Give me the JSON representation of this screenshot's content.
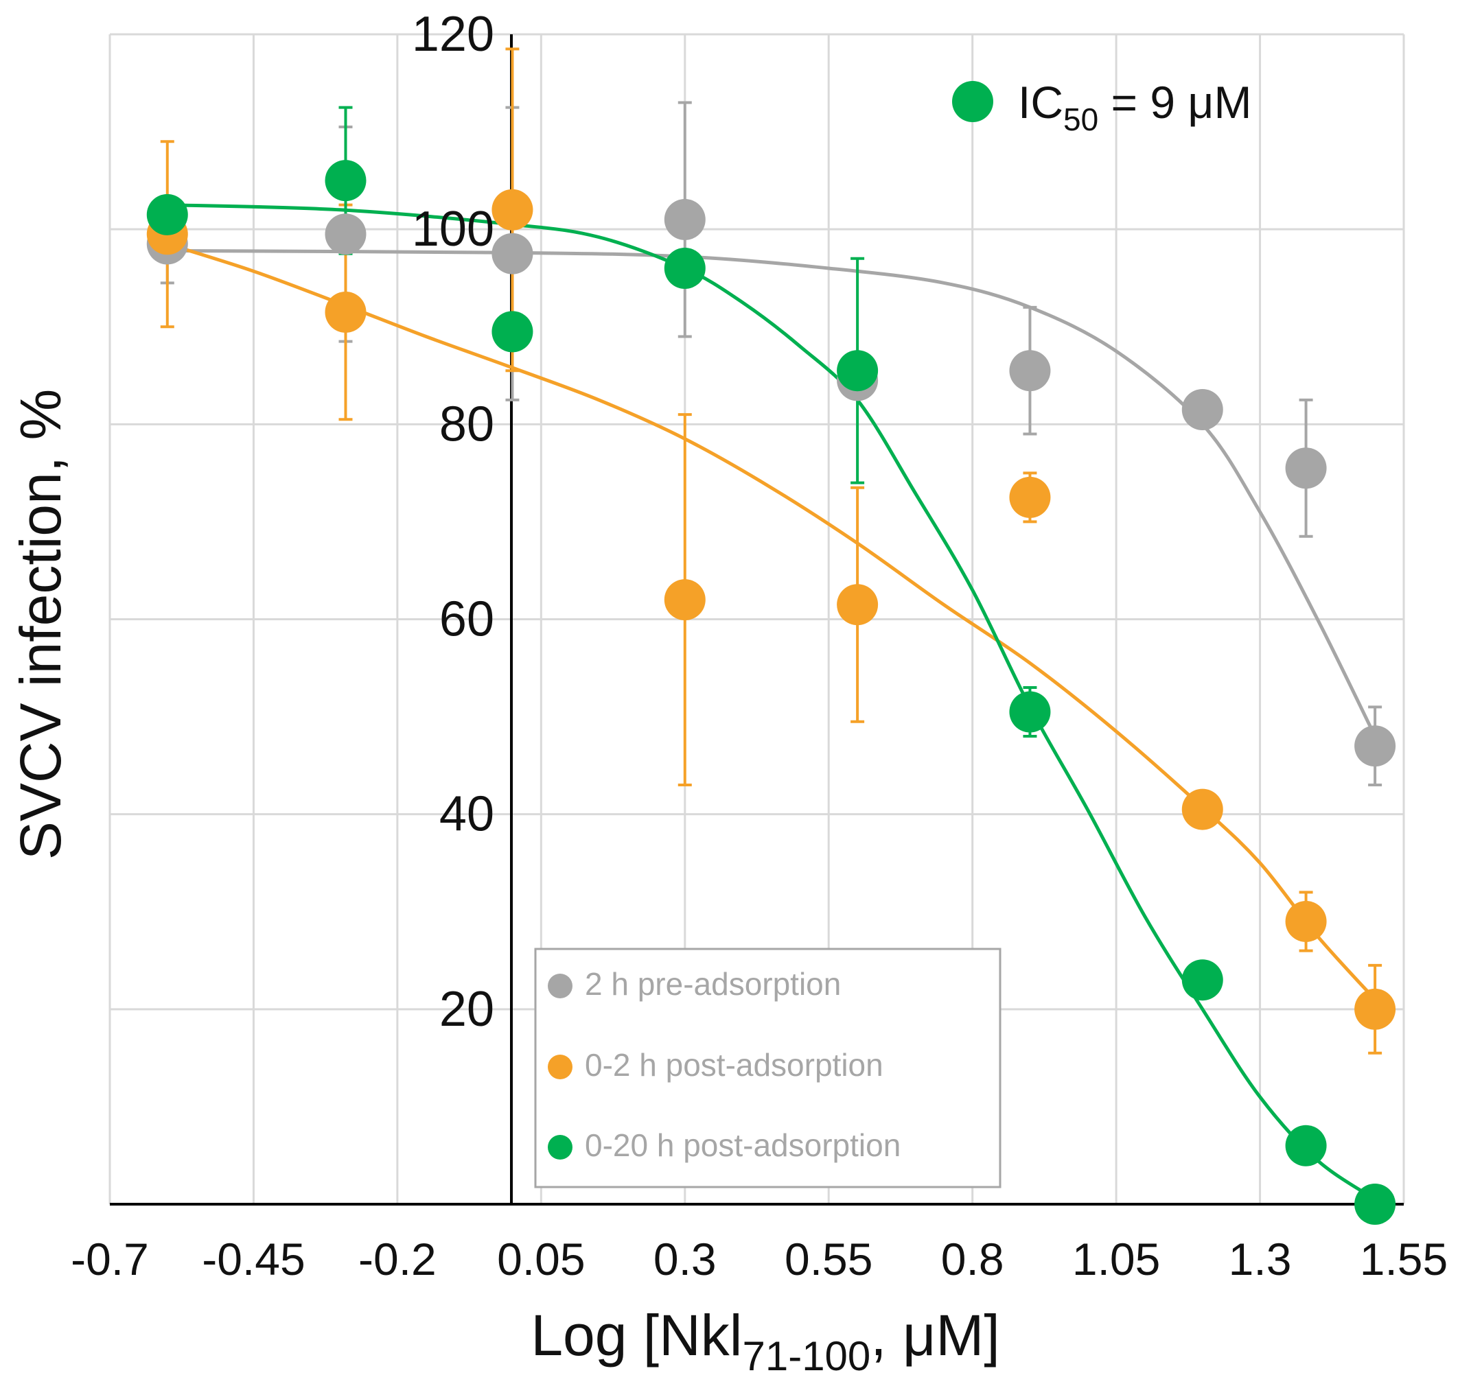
{
  "chart_data": {
    "type": "scatter",
    "xlabel_main": "Log [Nkl",
    "xlabel_sub": "71-100",
    "xlabel_tail": ", μM]",
    "ylabel": "SVCV infection, %",
    "xlim": [
      -0.7,
      1.55
    ],
    "ylim": [
      0,
      120
    ],
    "x_ticks": [
      -0.7,
      -0.45,
      -0.2,
      0.05,
      0.3,
      0.55,
      0.8,
      1.05,
      1.3,
      1.55
    ],
    "x_tick_labels": [
      "-0.7",
      "-0.45",
      "-0.2",
      "0.05",
      "0.3",
      "0.55",
      "0.8",
      "1.05",
      "1.3",
      "1.55"
    ],
    "y_ticks": [
      20,
      40,
      60,
      80,
      100,
      120
    ],
    "y_tick_labels": [
      "20",
      "40",
      "60",
      "80",
      "100",
      "120"
    ],
    "grid": true,
    "legend_position": "bottom-center",
    "annotation": {
      "prefix": "IC",
      "sub": "50",
      "suffix": " = 9 μM",
      "color": "#00b050"
    },
    "series": [
      {
        "name": "2 h pre-adsorption",
        "color": "#a6a6a6",
        "x": [
          -0.6,
          -0.29,
          0.0,
          0.3,
          0.6,
          0.9,
          1.2,
          1.38,
          1.5
        ],
        "y": [
          98.5,
          99.5,
          97.5,
          101,
          84.5,
          85.5,
          81.5,
          75.5,
          47
        ],
        "err": [
          4,
          11,
          15,
          12,
          0,
          6.5,
          0,
          7,
          4
        ],
        "fit_x": [
          -0.6,
          0.0,
          0.3,
          0.55,
          0.75,
          0.9,
          1.05,
          1.2,
          1.3,
          1.4,
          1.5
        ],
        "fit_y": [
          97.8,
          97.6,
          97.2,
          96,
          94.5,
          92,
          87.5,
          80,
          71,
          60,
          48
        ]
      },
      {
        "name": "0-2 h post-adsorption",
        "color": "#f5a128",
        "x": [
          -0.6,
          -0.29,
          0.0,
          0.3,
          0.6,
          0.9,
          1.2,
          1.38,
          1.5
        ],
        "y": [
          99.5,
          91.5,
          102,
          62,
          61.5,
          72.5,
          40.5,
          29,
          20
        ],
        "err": [
          9.5,
          11,
          16.5,
          19,
          12,
          2.5,
          0,
          3,
          4.5
        ],
        "fit_x": [
          -0.6,
          -0.45,
          -0.3,
          -0.15,
          0.0,
          0.15,
          0.3,
          0.45,
          0.6,
          0.75,
          0.9,
          1.05,
          1.2,
          1.3,
          1.4,
          1.5
        ],
        "fit_y": [
          98.5,
          95.7,
          92.4,
          89,
          85.8,
          82.5,
          78.5,
          73.5,
          67.8,
          61.5,
          55.5,
          48.5,
          40.7,
          35,
          27.5,
          21
        ]
      },
      {
        "name": "0-20 h post-adsorption",
        "color": "#00b050",
        "x": [
          -0.6,
          -0.29,
          0.0,
          0.3,
          0.6,
          0.9,
          1.2,
          1.38,
          1.5
        ],
        "y": [
          101.5,
          105,
          89.5,
          96,
          85.5,
          50.5,
          23,
          6,
          0
        ],
        "err": [
          0,
          7.5,
          0,
          0,
          11.5,
          2.5,
          0,
          0,
          0
        ],
        "fit_x": [
          -0.6,
          -0.3,
          0.0,
          0.15,
          0.3,
          0.4,
          0.5,
          0.6,
          0.7,
          0.8,
          0.9,
          1.0,
          1.1,
          1.2,
          1.3,
          1.4,
          1.5
        ],
        "fit_y": [
          102.5,
          102,
          100.5,
          99.2,
          96,
          92.5,
          88,
          82.5,
          73,
          63,
          51,
          40.5,
          29.5,
          20,
          11,
          4.5,
          0.5
        ]
      }
    ]
  }
}
